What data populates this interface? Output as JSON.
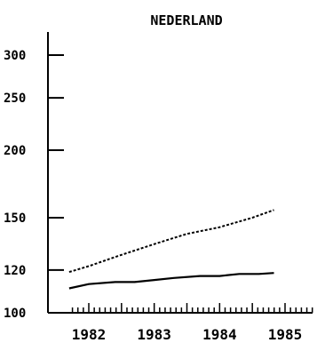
{
  "chart_data": {
    "type": "line",
    "title": "NEDERLAND",
    "xlabel": "",
    "ylabel": "",
    "y_scale": "log",
    "ylim": [
      100,
      320
    ],
    "xlim": [
      1981.7,
      1985.5
    ],
    "y_ticks": [
      100,
      120,
      150,
      200,
      250,
      300
    ],
    "x_tick_labels": [
      "1982",
      "1983",
      "1984",
      "1985"
    ],
    "x_tick_label_positions": [
      1982.0,
      1983.0,
      1984.0,
      1985.0
    ],
    "grid": false,
    "legend": "none",
    "series": [
      {
        "style": "dotted",
        "color": "#000000",
        "x": [
          1981.7,
          1982.0,
          1982.5,
          1983.0,
          1983.5,
          1984.0,
          1984.5,
          1984.83
        ],
        "values": [
          119,
          122,
          128,
          134,
          140,
          144,
          150,
          155
        ]
      },
      {
        "style": "solid",
        "color": "#000000",
        "x": [
          1981.7,
          1982.0,
          1982.4,
          1982.7,
          1983.0,
          1983.3,
          1983.7,
          1984.0,
          1984.3,
          1984.6,
          1984.83
        ],
        "values": [
          111,
          113,
          114,
          114,
          115,
          116,
          117,
          117,
          118,
          118,
          118.5
        ]
      }
    ]
  }
}
